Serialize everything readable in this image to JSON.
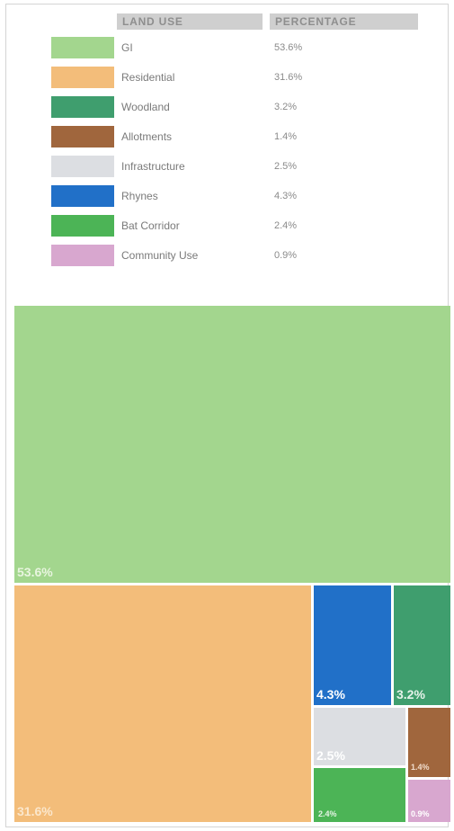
{
  "table": {
    "header_land_use": "LAND USE",
    "header_percentage": "PERCENTAGE"
  },
  "chart_data": {
    "type": "treemap",
    "unit": "%",
    "items": [
      {
        "name": "GI",
        "value": 53.6,
        "label": "53.6%",
        "color": "#a3d68e",
        "label_color": "#e8f5df"
      },
      {
        "name": "Residential",
        "value": 31.6,
        "label": "31.6%",
        "color": "#f3bd7a",
        "label_color": "#fbe7cc"
      },
      {
        "name": "Woodland",
        "value": 3.2,
        "label": "3.2%",
        "color": "#3f9e6e",
        "label_color": "#e6f3ea"
      },
      {
        "name": "Allotments",
        "value": 1.4,
        "label": "1.4%",
        "color": "#a0663d",
        "label_color": "#f0dccc"
      },
      {
        "name": "Infrastructure",
        "value": 2.5,
        "label": "2.5%",
        "color": "#dcdee2",
        "label_color": "#ffffff"
      },
      {
        "name": "Rhynes",
        "value": 4.3,
        "label": "4.3%",
        "color": "#2170c8",
        "label_color": "#ffffff"
      },
      {
        "name": "Bat Corridor",
        "value": 2.4,
        "label": "2.4%",
        "color": "#4cb456",
        "label_color": "#e4f4e4"
      },
      {
        "name": "Community Use",
        "value": 0.9,
        "label": "0.9%",
        "color": "#d8a7cf",
        "label_color": "#ffffff"
      }
    ]
  }
}
